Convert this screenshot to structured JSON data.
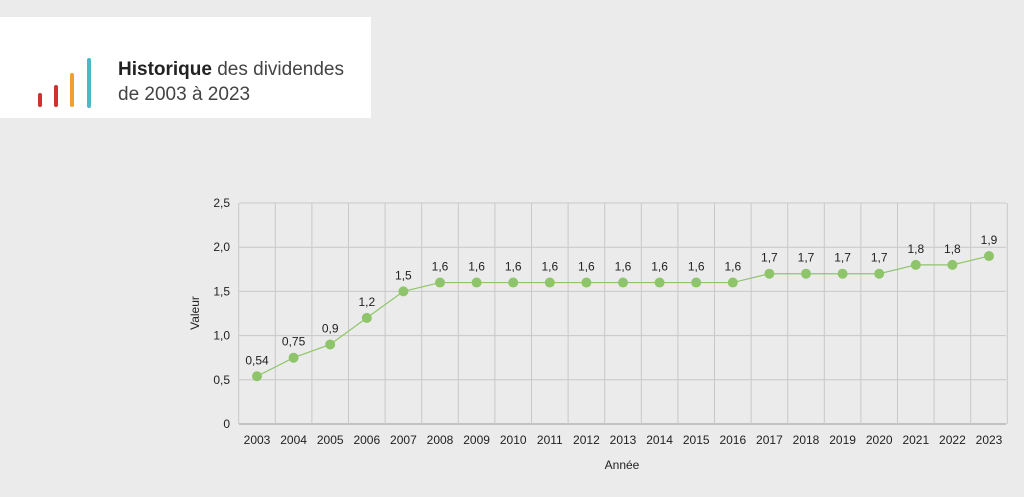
{
  "header": {
    "title_strong": "Historique",
    "title_rest": " des dividendes",
    "subtitle": "de 2003 à 2023",
    "logo_bar_colors": [
      "#d0312d",
      "#d0312d",
      "#f0a030",
      "#4ab8c8"
    ]
  },
  "chart_data": {
    "type": "line",
    "xlabel": "Année",
    "ylabel": "Valeur",
    "ylim": [
      0,
      2.5
    ],
    "yticks": [
      "0",
      "0,5",
      "1,0",
      "1,5",
      "2,0",
      "2,5"
    ],
    "grid": true,
    "line_color": "#8fc56a",
    "categories": [
      "2003",
      "2004",
      "2005",
      "2006",
      "2007",
      "2008",
      "2009",
      "2010",
      "2011",
      "2012",
      "2013",
      "2014",
      "2015",
      "2016",
      "2017",
      "2018",
      "2019",
      "2020",
      "2021",
      "2022",
      "2023"
    ],
    "values": [
      0.54,
      0.75,
      0.9,
      1.2,
      1.5,
      1.6,
      1.6,
      1.6,
      1.6,
      1.6,
      1.6,
      1.6,
      1.6,
      1.6,
      1.7,
      1.7,
      1.7,
      1.7,
      1.8,
      1.8,
      1.9
    ],
    "data_labels": [
      "0,54",
      "0,75",
      "0,9",
      "1,2",
      "1,5",
      "1,6",
      "1,6",
      "1,6",
      "1,6",
      "1,6",
      "1,6",
      "1,6",
      "1,6",
      "1,6",
      "1,7",
      "1,7",
      "1,7",
      "1,7",
      "1,8",
      "1,8",
      "1,9"
    ]
  }
}
